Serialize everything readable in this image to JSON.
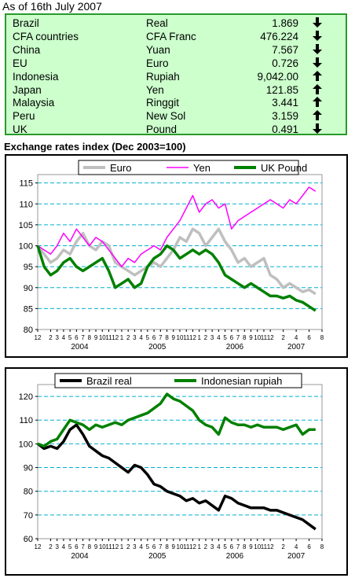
{
  "as_of": "As of 16th July 2007",
  "rates": [
    {
      "country": "Brazil",
      "currency": "Real",
      "rate": "1.869",
      "direction": "down"
    },
    {
      "country": "CFA countries",
      "currency": "CFA Franc",
      "rate": "476.224",
      "direction": "down"
    },
    {
      "country": "China",
      "currency": "Yuan",
      "rate": "7.567",
      "direction": "down"
    },
    {
      "country": "EU",
      "currency": "Euro",
      "rate": "0.726",
      "direction": "down"
    },
    {
      "country": "Indonesia",
      "currency": "Rupiah",
      "rate": "9,042.00",
      "direction": "up"
    },
    {
      "country": "Japan",
      "currency": "Yen",
      "rate": "121.85",
      "direction": "up"
    },
    {
      "country": "Malaysia",
      "currency": "Ringgit",
      "rate": "3.441",
      "direction": "up"
    },
    {
      "country": "Peru",
      "currency": "New Sol",
      "rate": "3.159",
      "direction": "up"
    },
    {
      "country": "UK",
      "currency": "Pound",
      "rate": "0.491",
      "direction": "down"
    }
  ],
  "section_title": "Exchange rates index (Dec 2003=100)",
  "colors": {
    "euro": "#bfbfbf",
    "yen": "#ff00ff",
    "pound": "#008000",
    "real": "#000000",
    "rupiah": "#008000",
    "gridline": "#00b0d0",
    "table_bg": "#ccffcc",
    "table_border": "#2a9a2a"
  },
  "chart_data": [
    {
      "type": "line",
      "grid": true,
      "legend_placement": "top",
      "x_ticks": [
        "12",
        "2",
        "3",
        "4",
        "5",
        "6",
        "7",
        "8",
        "9",
        "10",
        "11",
        "12",
        "1",
        "2",
        "3",
        "4",
        "5",
        "6",
        "7",
        "8",
        "9",
        "10",
        "11",
        "12",
        "1",
        "2",
        "3",
        "4",
        "5",
        "6",
        "7",
        "8",
        "9",
        "10",
        "11",
        "12",
        "2",
        "4",
        "6",
        "8"
      ],
      "x_tick_positions": [
        0,
        2,
        3,
        4,
        5,
        6,
        7,
        8,
        9,
        10,
        11,
        12,
        13,
        14,
        15,
        16,
        17,
        18,
        19,
        20,
        21,
        22,
        23,
        24,
        25,
        26,
        27,
        28,
        29,
        30,
        31,
        32,
        33,
        34,
        35,
        36,
        38,
        40,
        42,
        44
      ],
      "x_groups": [
        {
          "label": "2004",
          "at": 6.5
        },
        {
          "label": "2005",
          "at": 18.5
        },
        {
          "label": "2006",
          "at": 30.5
        },
        {
          "label": "2007",
          "at": 40
        }
      ],
      "xlim": [
        0,
        44
      ],
      "ylim": [
        80,
        117
      ],
      "y_ticks": [
        80,
        85,
        90,
        95,
        100,
        105,
        110,
        115
      ],
      "series": [
        {
          "name": "Euro",
          "key": "euro",
          "x": [
            0,
            1,
            2,
            3,
            4,
            5,
            6,
            7,
            8,
            9,
            10,
            11,
            12,
            13,
            14,
            15,
            16,
            17,
            18,
            19,
            20,
            21,
            22,
            23,
            24,
            25,
            26,
            27,
            28,
            29,
            30,
            31,
            32,
            33,
            34,
            35,
            36,
            37,
            38,
            39,
            40,
            41,
            42,
            43
          ],
          "values": [
            100,
            98,
            96,
            97,
            99,
            98,
            101,
            103,
            100,
            99,
            101,
            100,
            96,
            95,
            94,
            93,
            94,
            95,
            96,
            95,
            97,
            99,
            102,
            101,
            104,
            103,
            100,
            102,
            104,
            101,
            99,
            96,
            97,
            95,
            96,
            97,
            93,
            92,
            90,
            91,
            90,
            89,
            89.5,
            88.5
          ]
        },
        {
          "name": "Yen",
          "key": "yen",
          "x": [
            0,
            1,
            2,
            3,
            4,
            5,
            6,
            7,
            8,
            9,
            10,
            11,
            12,
            13,
            14,
            15,
            16,
            17,
            18,
            19,
            20,
            21,
            22,
            23,
            24,
            25,
            26,
            27,
            28,
            29,
            30,
            31,
            32,
            33,
            34,
            35,
            36,
            37,
            38,
            39,
            40,
            41,
            42,
            43
          ],
          "values": [
            100,
            99,
            98,
            100,
            103,
            101,
            104,
            102,
            100,
            102,
            101,
            99,
            97,
            95,
            97,
            96,
            98,
            99,
            100,
            99,
            102,
            104,
            106,
            109,
            112,
            108,
            110,
            111,
            109,
            110,
            104,
            106,
            107,
            108,
            109,
            110,
            111,
            110,
            109,
            111,
            110,
            112,
            114,
            113
          ]
        },
        {
          "name": "UK Pound",
          "key": "pound",
          "x": [
            0,
            1,
            2,
            3,
            4,
            5,
            6,
            7,
            8,
            9,
            10,
            11,
            12,
            13,
            14,
            15,
            16,
            17,
            18,
            19,
            20,
            21,
            22,
            23,
            24,
            25,
            26,
            27,
            28,
            29,
            30,
            31,
            32,
            33,
            34,
            35,
            36,
            37,
            38,
            39,
            40,
            41,
            42,
            43
          ],
          "values": [
            100,
            95,
            93,
            94,
            96,
            97,
            95,
            94,
            95,
            96,
            97,
            94,
            90,
            91,
            92,
            90,
            91,
            95,
            97,
            98,
            100,
            99,
            97,
            98,
            99,
            98,
            99,
            98,
            96,
            93,
            92,
            91,
            90,
            91,
            90,
            89,
            88,
            88,
            87.5,
            88,
            87,
            86.5,
            85.5,
            84.5
          ]
        }
      ]
    },
    {
      "type": "line",
      "grid": true,
      "legend_placement": "top",
      "x_ticks": [
        "12",
        "2",
        "3",
        "4",
        "5",
        "6",
        "7",
        "8",
        "9",
        "10",
        "11",
        "12",
        "1",
        "2",
        "3",
        "4",
        "5",
        "6",
        "7",
        "8",
        "9",
        "10",
        "11",
        "12",
        "1",
        "2",
        "3",
        "4",
        "5",
        "6",
        "7",
        "8",
        "9",
        "10",
        "11",
        "12",
        "2",
        "4",
        "6",
        "8"
      ],
      "x_tick_positions": [
        0,
        2,
        3,
        4,
        5,
        6,
        7,
        8,
        9,
        10,
        11,
        12,
        13,
        14,
        15,
        16,
        17,
        18,
        19,
        20,
        21,
        22,
        23,
        24,
        25,
        26,
        27,
        28,
        29,
        30,
        31,
        32,
        33,
        34,
        35,
        36,
        38,
        40,
        42,
        44
      ],
      "x_groups": [
        {
          "label": "2004",
          "at": 6.5
        },
        {
          "label": "2005",
          "at": 18.5
        },
        {
          "label": "2006",
          "at": 30.5
        },
        {
          "label": "2007",
          "at": 40
        }
      ],
      "xlim": [
        0,
        44
      ],
      "ylim": [
        60,
        125
      ],
      "y_ticks": [
        60,
        70,
        80,
        90,
        100,
        110,
        120
      ],
      "series": [
        {
          "name": "Brazil real",
          "key": "real",
          "x": [
            0,
            1,
            2,
            3,
            4,
            5,
            6,
            7,
            8,
            9,
            10,
            11,
            12,
            13,
            14,
            15,
            16,
            17,
            18,
            19,
            20,
            21,
            22,
            23,
            24,
            25,
            26,
            27,
            28,
            29,
            30,
            31,
            32,
            33,
            34,
            35,
            36,
            37,
            38,
            39,
            40,
            41,
            42,
            43
          ],
          "values": [
            100,
            98,
            99,
            98,
            101,
            106,
            108,
            104,
            99,
            97,
            95,
            94,
            92,
            90,
            88,
            91,
            90,
            87,
            83,
            82,
            80,
            79,
            78,
            76,
            77,
            75,
            76,
            74,
            72,
            78,
            77,
            75,
            74,
            73,
            73,
            73,
            72,
            72,
            71,
            70,
            69,
            68,
            66,
            64
          ]
        },
        {
          "name": "Indonesian rupiah",
          "key": "rupiah",
          "x": [
            0,
            1,
            2,
            3,
            4,
            5,
            6,
            7,
            8,
            9,
            10,
            11,
            12,
            13,
            14,
            15,
            16,
            17,
            18,
            19,
            20,
            21,
            22,
            23,
            24,
            25,
            26,
            27,
            28,
            29,
            30,
            31,
            32,
            33,
            34,
            35,
            36,
            37,
            38,
            39,
            40,
            41,
            42,
            43
          ],
          "values": [
            100,
            99,
            101,
            102,
            106,
            110,
            109,
            108,
            106,
            108,
            107,
            108,
            109,
            108,
            110,
            111,
            112,
            113,
            115,
            117,
            121,
            119,
            118,
            116,
            114,
            110,
            108,
            107,
            104,
            111,
            109,
            108,
            108,
            107,
            108,
            107,
            107,
            107,
            106,
            107,
            108,
            104,
            106,
            106
          ]
        }
      ]
    }
  ]
}
